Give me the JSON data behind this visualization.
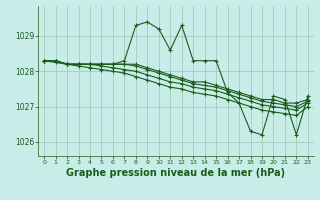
{
  "background_color": "#c8ece8",
  "grid_color": "#a0ccbc",
  "line_color": "#1a5c1a",
  "marker_color": "#1a5c1a",
  "xlabel": "Graphe pression niveau de la mer (hPa)",
  "xlabel_fontsize": 7,
  "xlim": [
    -0.5,
    23.5
  ],
  "ylim": [
    1025.6,
    1029.85
  ],
  "yticks": [
    1026,
    1027,
    1028,
    1029
  ],
  "xticks": [
    0,
    1,
    2,
    3,
    4,
    5,
    6,
    7,
    8,
    9,
    10,
    11,
    12,
    13,
    14,
    15,
    16,
    17,
    18,
    19,
    20,
    21,
    22,
    23
  ],
  "series": [
    [
      1028.3,
      1028.3,
      1028.2,
      1028.2,
      1028.2,
      1028.2,
      1028.2,
      1028.3,
      1029.3,
      1029.4,
      1029.2,
      1028.6,
      1029.3,
      1028.3,
      1028.3,
      1028.3,
      1027.4,
      1027.1,
      1026.3,
      1026.2,
      1027.3,
      1027.2,
      1026.2,
      1027.3
    ],
    [
      1028.3,
      1028.3,
      1028.2,
      1028.2,
      1028.2,
      1028.2,
      1028.2,
      1028.2,
      1028.2,
      1028.1,
      1028.0,
      1027.9,
      1027.8,
      1027.7,
      1027.7,
      1027.6,
      1027.5,
      1027.4,
      1027.3,
      1027.2,
      1027.2,
      1027.1,
      1027.1,
      1027.2
    ],
    [
      1028.3,
      1028.3,
      1028.2,
      1028.2,
      1028.2,
      1028.2,
      1028.2,
      1028.2,
      1028.15,
      1028.05,
      1027.95,
      1027.85,
      1027.75,
      1027.65,
      1027.6,
      1027.55,
      1027.45,
      1027.35,
      1027.25,
      1027.15,
      1027.1,
      1027.05,
      1027.0,
      1027.15
    ],
    [
      1028.3,
      1028.3,
      1028.2,
      1028.2,
      1028.2,
      1028.15,
      1028.1,
      1028.05,
      1028.0,
      1027.9,
      1027.8,
      1027.7,
      1027.65,
      1027.55,
      1027.5,
      1027.45,
      1027.35,
      1027.25,
      1027.15,
      1027.05,
      1027.0,
      1026.95,
      1026.9,
      1027.1
    ],
    [
      1028.3,
      1028.25,
      1028.2,
      1028.15,
      1028.1,
      1028.05,
      1028.0,
      1027.95,
      1027.85,
      1027.75,
      1027.65,
      1027.55,
      1027.5,
      1027.4,
      1027.35,
      1027.3,
      1027.2,
      1027.1,
      1027.0,
      1026.9,
      1026.85,
      1026.8,
      1026.75,
      1027.0
    ]
  ]
}
